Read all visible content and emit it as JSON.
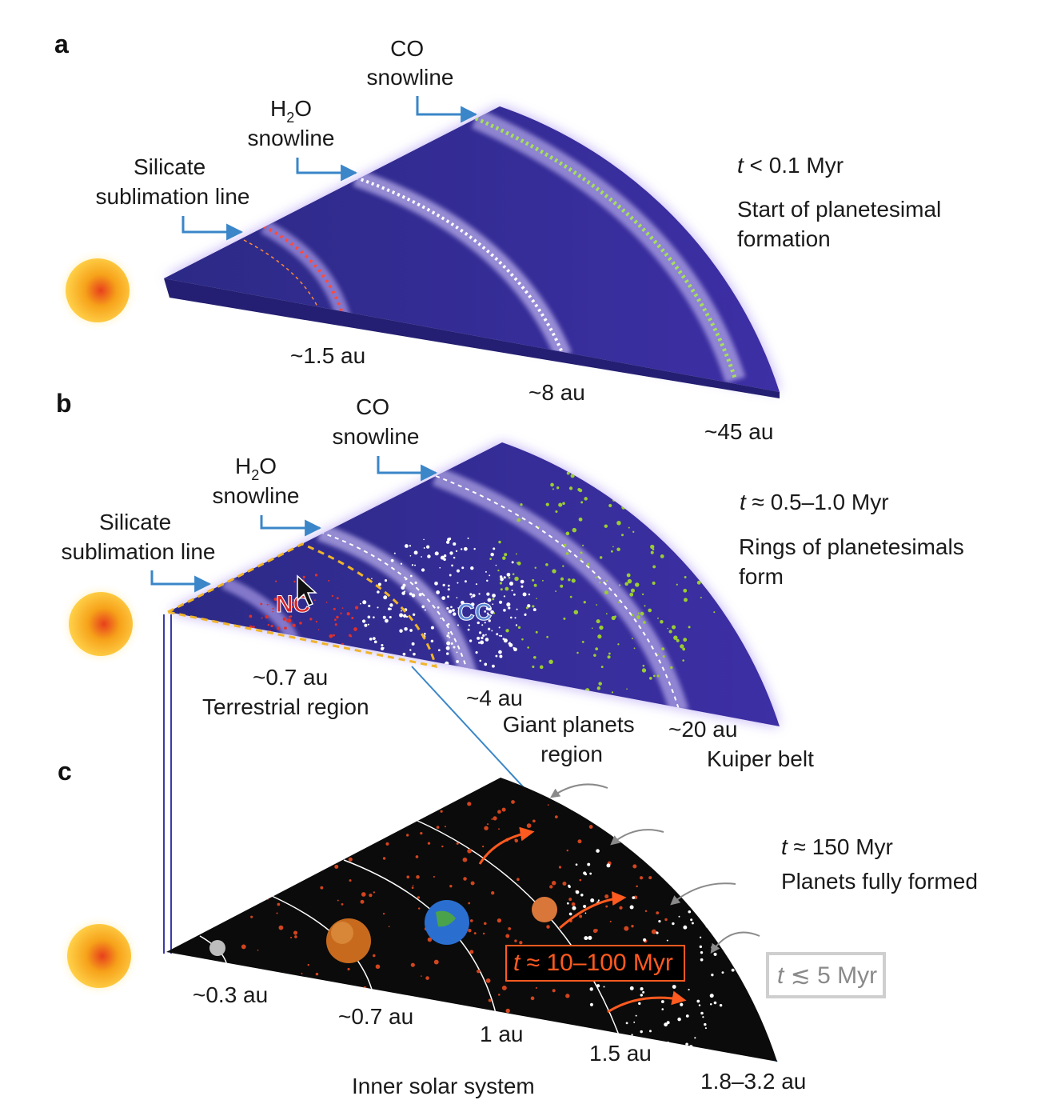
{
  "panels": {
    "a": {
      "letter": "a",
      "co_snowline": [
        "CO",
        "snowline"
      ],
      "h2o_snowline": {
        "line1_main": "H",
        "line1_sub": "2",
        "line1_tail": "O",
        "line2": "snowline"
      },
      "silicate": [
        "Silicate",
        "sublimation line"
      ],
      "time": {
        "t": "t",
        "rest": " < 0.1 Myr"
      },
      "caption": [
        "Start of planetesimal",
        "formation"
      ],
      "distances": [
        "~1.5 au",
        "~8 au",
        "~45 au"
      ]
    },
    "b": {
      "letter": "b",
      "co_snowline": [
        "CO",
        "snowline"
      ],
      "h2o_snowline": {
        "line1_main": "H",
        "line1_sub": "2",
        "line1_tail": "O",
        "line2": "snowline"
      },
      "silicate": [
        "Silicate",
        "sublimation line"
      ],
      "time": {
        "t": "t",
        "rest": " ≈ 0.5–1.0 Myr"
      },
      "caption": [
        "Rings of planetesimals",
        "form"
      ],
      "nc": "NC",
      "cc": "CC",
      "distances": [
        "~0.7 au",
        "~4 au",
        "~20 au"
      ],
      "regions": [
        "Terrestrial region",
        "Giant planets",
        "region",
        "Kuiper belt"
      ]
    },
    "c": {
      "letter": "c",
      "time": {
        "t": "t",
        "rest": " ≈ 150 Myr"
      },
      "caption": "Planets fully formed",
      "orange_box": {
        "t": "t",
        "rest": " ≈ 10–100 Myr"
      },
      "grey_box": {
        "t": "t",
        "rest": " ≲ 5 Myr"
      },
      "distances": [
        "~0.3 au",
        "~0.7 au",
        "1 au",
        "1.5 au",
        "1.8–3.2 au"
      ],
      "region": "Inner solar system"
    }
  },
  "colors": {
    "disk": "#3b2f9a",
    "disk_edge": "#6a5ae0",
    "space": "#0a0a0a",
    "arrow_blue": "#3a86c8",
    "silicate_dots": "#e0302a",
    "water_dots": "#ffffff",
    "co_dots": "#9acd32",
    "orange": "#ff5a1f",
    "sun": "#f6a21a"
  }
}
